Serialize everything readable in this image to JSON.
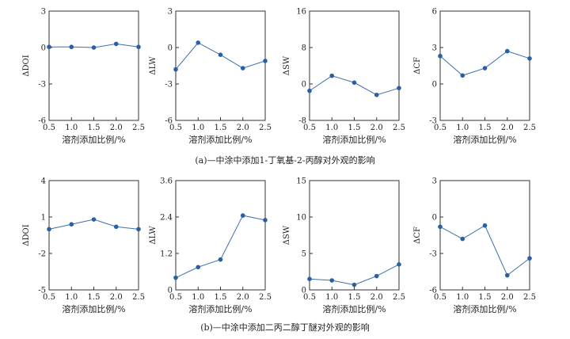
{
  "captions": {
    "a": "(a)—中涂中添加1-丁氧基-2-丙醇对外观的影响",
    "b": "(b)—中涂中添加二丙二醇丁醚对外观的影响"
  },
  "colors": {
    "axis": "#333333",
    "line": "#3f6fae",
    "marker": "#2b5fa3",
    "text": "#222222"
  },
  "chart_data": [
    {
      "type": "line",
      "ylabel": "ΔDOI",
      "xlabel": "溶剂添加比例/%",
      "x": [
        0.5,
        1.0,
        1.5,
        2.0,
        2.5
      ],
      "xticks": [
        "0.5",
        "1.0",
        "1.5",
        "2.0",
        "2.5"
      ],
      "ylim": [
        -6,
        3
      ],
      "yticks": [
        "-6",
        "-3",
        "0",
        "3"
      ],
      "series": [
        {
          "values": [
            0.05,
            0.05,
            0.0,
            0.3,
            0.05
          ]
        }
      ]
    },
    {
      "type": "line",
      "ylabel": "ΔLW",
      "xlabel": "溶剂添加比例/%",
      "x": [
        0.5,
        1.0,
        1.5,
        2.0,
        2.5
      ],
      "xticks": [
        "0.5",
        "1.0",
        "1.5",
        "2.0",
        "2.5"
      ],
      "ylim": [
        -6,
        3
      ],
      "yticks": [
        "-6",
        "-3",
        "0",
        "3"
      ],
      "series": [
        {
          "values": [
            -1.8,
            0.4,
            -0.6,
            -1.7,
            -1.1
          ]
        }
      ]
    },
    {
      "type": "line",
      "ylabel": "ΔSW",
      "xlabel": "溶剂添加比例/%",
      "x": [
        0.5,
        1.0,
        1.5,
        2.0,
        2.5
      ],
      "xticks": [
        "0.5",
        "1.0",
        "1.5",
        "2.0",
        "2.5"
      ],
      "ylim": [
        -8,
        16
      ],
      "yticks": [
        "-8",
        "0",
        "8",
        "16"
      ],
      "series": [
        {
          "values": [
            -1.5,
            1.8,
            0.3,
            -2.4,
            -0.9
          ]
        }
      ]
    },
    {
      "type": "line",
      "ylabel": "ΔCF",
      "xlabel": "溶剂添加比例/%",
      "x": [
        0.5,
        1.0,
        1.5,
        2.0,
        2.5
      ],
      "xticks": [
        "0.5",
        "1.0",
        "1.5",
        "2.0",
        "2.5"
      ],
      "ylim": [
        -3,
        6
      ],
      "yticks": [
        "-3",
        "0",
        "3",
        "6"
      ],
      "series": [
        {
          "values": [
            2.3,
            0.7,
            1.3,
            2.7,
            2.1
          ]
        }
      ]
    },
    {
      "type": "line",
      "ylabel": "ΔDOI",
      "xlabel": "溶剂添加比例/%",
      "x": [
        0.5,
        1.0,
        1.5,
        2.0,
        2.5
      ],
      "xticks": [
        "0.5",
        "1.0",
        "1.5",
        "2.0",
        "2.5"
      ],
      "ylim": [
        -5,
        4
      ],
      "yticks": [
        "-5",
        "-2",
        "1",
        "4"
      ],
      "series": [
        {
          "values": [
            0.0,
            0.4,
            0.8,
            0.2,
            0.0
          ]
        }
      ]
    },
    {
      "type": "line",
      "ylabel": "ΔLW",
      "xlabel": "溶剂添加比例/%",
      "x": [
        0.5,
        1.0,
        1.5,
        2.0,
        2.5
      ],
      "xticks": [
        "0.5",
        "1.0",
        "1.5",
        "2.0",
        "2.5"
      ],
      "ylim": [
        0,
        3.6
      ],
      "yticks": [
        "0",
        "1.2",
        "2.4",
        "3.6"
      ],
      "series": [
        {
          "values": [
            0.4,
            0.75,
            1.0,
            2.45,
            2.3
          ]
        }
      ]
    },
    {
      "type": "line",
      "ylabel": "ΔSW",
      "xlabel": "溶剂添加比例/%",
      "x": [
        0.5,
        1.0,
        1.5,
        2.0,
        2.5
      ],
      "xticks": [
        "0.5",
        "1.0",
        "1.5",
        "2.0",
        "2.5"
      ],
      "ylim": [
        0,
        15
      ],
      "yticks": [
        "0",
        "5",
        "10",
        "15"
      ],
      "series": [
        {
          "values": [
            1.5,
            1.3,
            0.7,
            1.9,
            3.5
          ]
        }
      ]
    },
    {
      "type": "line",
      "ylabel": "ΔCF",
      "xlabel": "溶剂添加比例/%",
      "x": [
        0.5,
        1.0,
        1.5,
        2.0,
        2.5
      ],
      "xticks": [
        "0.5",
        "1.0",
        "1.5",
        "2.0",
        "2.5"
      ],
      "ylim": [
        -6,
        3
      ],
      "yticks": [
        "-6",
        "-3",
        "0",
        "3"
      ],
      "series": [
        {
          "values": [
            -0.8,
            -1.8,
            -0.7,
            -4.8,
            -3.4
          ]
        }
      ]
    }
  ]
}
